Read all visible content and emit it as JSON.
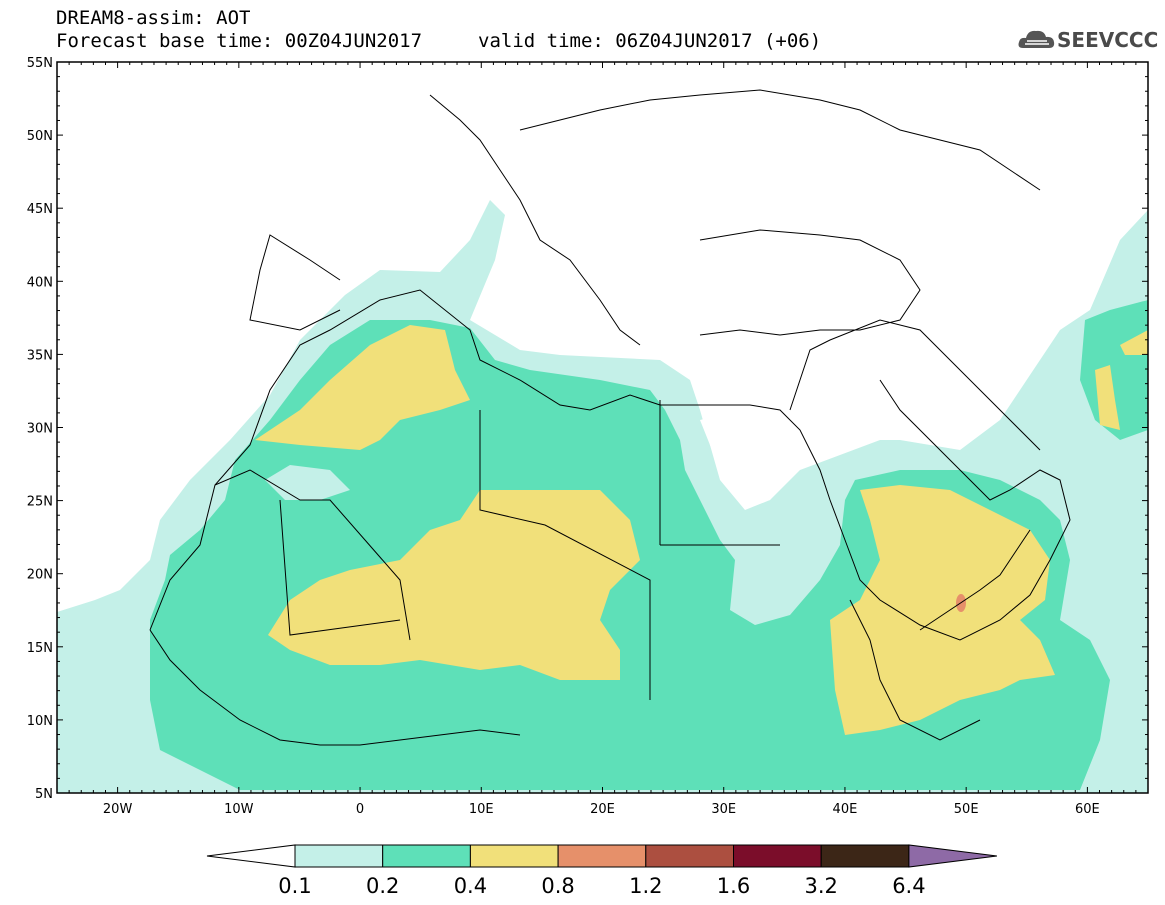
{
  "header": {
    "title_line1": "DREAM8-assim: AOT",
    "base_time": "Forecast base time: 00Z04JUN2017",
    "valid_time": "valid time: 06Z04JUN2017 (+06)",
    "logo_text": "SEEVCCC"
  },
  "map": {
    "lat_labels": [
      "55N",
      "50N",
      "45N",
      "40N",
      "35N",
      "30N",
      "25N",
      "20N",
      "15N",
      "10N",
      "5N"
    ],
    "lon_labels": [
      "20W",
      "10W",
      "0",
      "10E",
      "20E",
      "30E",
      "40E",
      "50E",
      "60E"
    ],
    "extent": {
      "lon_min": -25,
      "lon_max": 65,
      "lat_min": 5,
      "lat_max": 55
    },
    "background_color": "#ffffff",
    "coastline_color": "#000000"
  },
  "colorbar": {
    "levels": [
      "0.1",
      "0.2",
      "0.4",
      "0.8",
      "1.2",
      "1.6",
      "3.2",
      "6.4"
    ],
    "colors": [
      "#ffffff",
      "#c4f0e8",
      "#5ee0b8",
      "#f1e07a",
      "#e6906a",
      "#ac4f40",
      "#7b0d2a",
      "#3c2617",
      "#8e6aa6"
    ]
  }
}
